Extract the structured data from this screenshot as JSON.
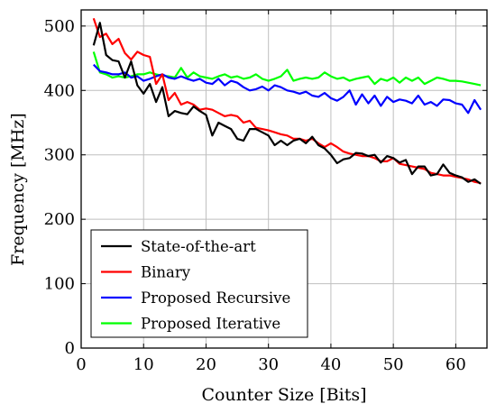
{
  "chart_data": {
    "type": "line",
    "title": "",
    "xlabel": "Counter Size [Bits]",
    "ylabel": "Frequency [MHz]",
    "xlim": [
      0,
      65
    ],
    "ylim": [
      0,
      525
    ],
    "xticks": [
      0,
      10,
      20,
      30,
      40,
      50,
      60
    ],
    "yticks": [
      0,
      100,
      200,
      300,
      400,
      500
    ],
    "grid": true,
    "legend_position": "bottom-left",
    "x": [
      2,
      3,
      4,
      5,
      6,
      7,
      8,
      9,
      10,
      11,
      12,
      13,
      14,
      15,
      16,
      17,
      18,
      19,
      20,
      21,
      22,
      23,
      24,
      25,
      26,
      27,
      28,
      29,
      30,
      31,
      32,
      33,
      34,
      35,
      36,
      37,
      38,
      39,
      40,
      41,
      42,
      43,
      44,
      45,
      46,
      47,
      48,
      49,
      50,
      51,
      52,
      53,
      54,
      55,
      56,
      57,
      58,
      59,
      60,
      61,
      62,
      63,
      64
    ],
    "series": [
      {
        "name": "State-of-the-art",
        "color": "#000000",
        "values": [
          470,
          505,
          455,
          447,
          445,
          420,
          445,
          408,
          395,
          410,
          382,
          405,
          360,
          368,
          365,
          363,
          375,
          368,
          362,
          330,
          350,
          345,
          340,
          325,
          322,
          340,
          340,
          335,
          330,
          315,
          322,
          315,
          322,
          325,
          318,
          328,
          315,
          310,
          300,
          287,
          293,
          295,
          303,
          302,
          298,
          300,
          288,
          298,
          295,
          288,
          292,
          270,
          282,
          282,
          268,
          270,
          285,
          272,
          268,
          265,
          258,
          262,
          255
        ]
      },
      {
        "name": "Binary",
        "color": "#ff0000",
        "values": [
          512,
          483,
          488,
          472,
          480,
          458,
          448,
          460,
          455,
          452,
          410,
          425,
          385,
          396,
          378,
          382,
          378,
          370,
          372,
          370,
          365,
          360,
          362,
          360,
          350,
          353,
          342,
          340,
          338,
          335,
          332,
          330,
          325,
          325,
          322,
          325,
          318,
          312,
          318,
          312,
          305,
          302,
          300,
          298,
          298,
          295,
          290,
          290,
          295,
          286,
          284,
          282,
          280,
          278,
          272,
          270,
          268,
          268,
          266,
          264,
          262,
          258,
          256
        ]
      },
      {
        "name": "Proposed Recursive",
        "color": "#0000ff",
        "values": [
          440,
          430,
          428,
          425,
          425,
          428,
          420,
          422,
          415,
          418,
          422,
          425,
          420,
          418,
          422,
          418,
          415,
          418,
          412,
          410,
          418,
          408,
          415,
          412,
          405,
          400,
          402,
          406,
          400,
          408,
          405,
          400,
          398,
          395,
          398,
          392,
          390,
          396,
          388,
          384,
          390,
          400,
          378,
          394,
          380,
          392,
          376,
          390,
          382,
          386,
          384,
          380,
          392,
          378,
          382,
          376,
          386,
          385,
          380,
          378,
          365,
          385,
          370
        ]
      },
      {
        "name": "Proposed Iterative",
        "color": "#00ff00",
        "values": [
          460,
          428,
          425,
          420,
          422,
          420,
          422,
          425,
          425,
          428,
          425,
          423,
          422,
          420,
          435,
          420,
          428,
          422,
          420,
          418,
          422,
          425,
          420,
          422,
          418,
          420,
          425,
          418,
          415,
          418,
          422,
          432,
          415,
          418,
          420,
          418,
          420,
          428,
          422,
          418,
          420,
          415,
          418,
          420,
          422,
          410,
          418,
          415,
          420,
          412,
          420,
          415,
          420,
          410,
          415,
          420,
          418,
          415,
          415,
          414,
          412,
          410,
          408
        ]
      }
    ]
  }
}
